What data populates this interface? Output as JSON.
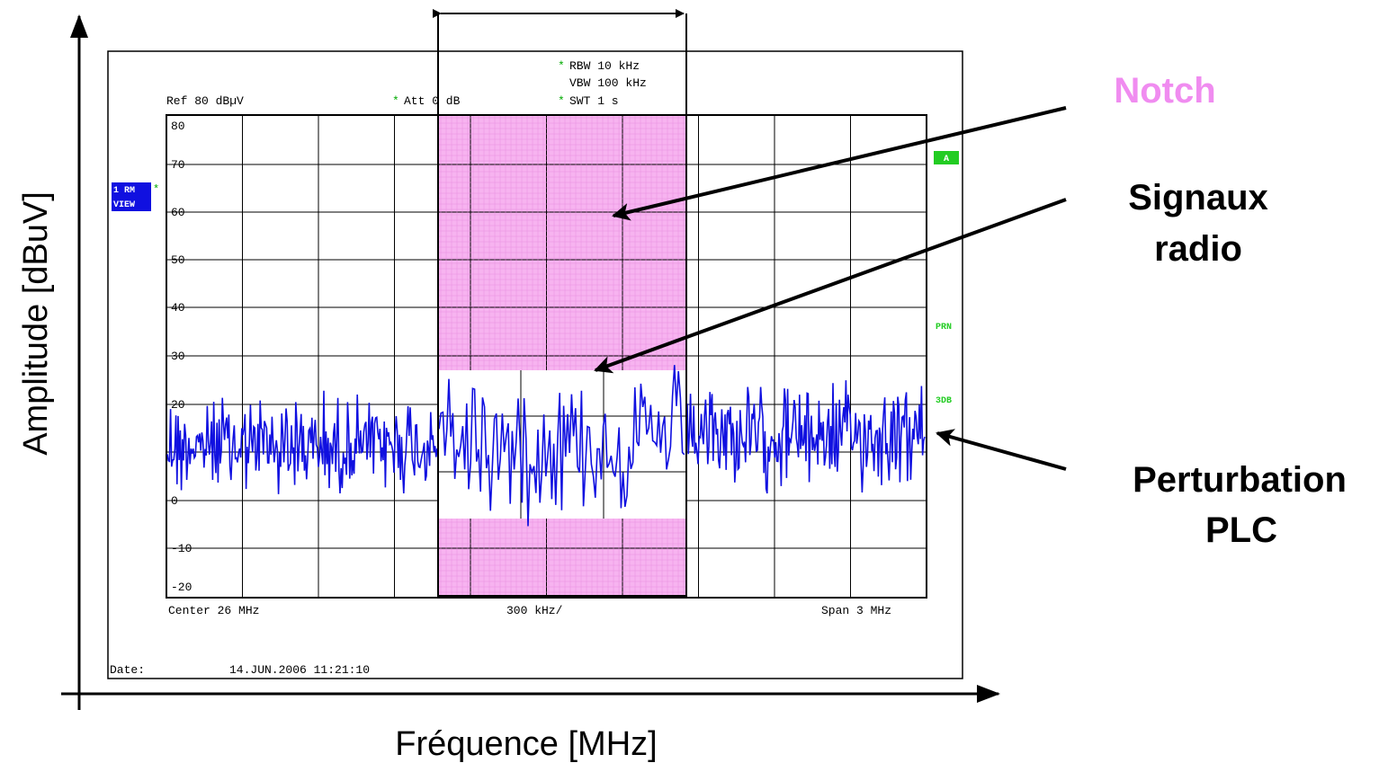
{
  "axes": {
    "y_label": "Amplitude [dBuV]",
    "x_label": "Fréquence [MHz]"
  },
  "screen": {
    "ref": "Ref  80 dBµV",
    "att": "Att  0 dB",
    "rbw": "RBW 10 kHz",
    "vbw": "VBW 100 kHz",
    "swt": "SWT 1 s",
    "y_labels": [
      "80",
      "70",
      "60",
      "50",
      "40",
      "30",
      "20",
      "0",
      "-10",
      "-20"
    ],
    "center": "Center 26 MHz",
    "per_div": "300 kHz/",
    "span": "Span 3 MHz",
    "date_label": "Date:",
    "date": "14.JUN.2006  11:21:10",
    "trace_1": "1 RM",
    "trace_2": "VIEW",
    "marker_a": "A",
    "prn": "PRN",
    "db3": "3DB"
  },
  "annotations": {
    "notch": "Notch",
    "radio_1": "Signaux",
    "radio_2": "radio",
    "plc_1": "Perturbation",
    "plc_2": "PLC"
  }
}
